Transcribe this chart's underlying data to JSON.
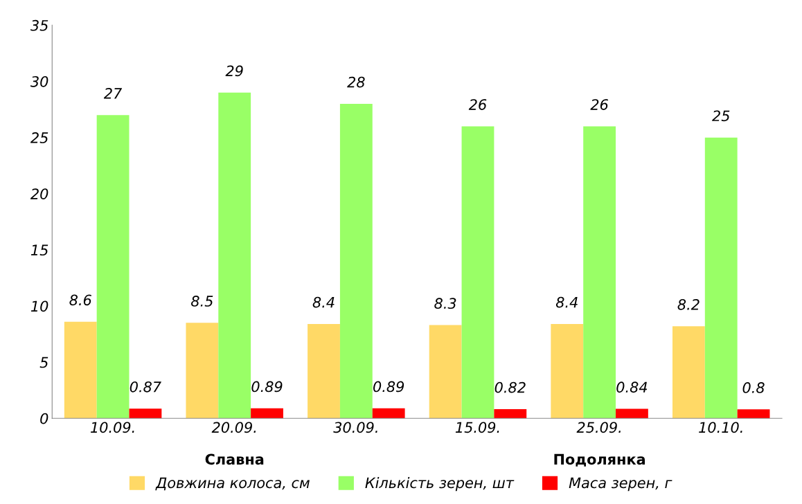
{
  "chart_data": {
    "type": "bar",
    "categories": [
      "10.09.",
      "20.09.",
      "30.09.",
      "15.09.",
      "25.09.",
      "10.10."
    ],
    "series": [
      {
        "name": "Довжина колоса, см",
        "color": "#ffd966",
        "values": [
          8.6,
          8.5,
          8.4,
          8.3,
          8.4,
          8.2
        ]
      },
      {
        "name": "Кількість зерен, шт",
        "color": "#99ff66",
        "values": [
          27,
          29,
          28,
          26,
          26,
          25
        ]
      },
      {
        "name": "Маса зерен, г",
        "color": "#ff0000",
        "values": [
          0.87,
          0.89,
          0.89,
          0.82,
          0.84,
          0.8
        ]
      }
    ],
    "annotations": [
      "Славна",
      "Подолянка"
    ],
    "ylim": [
      0,
      35
    ],
    "yticks": [
      0,
      5,
      10,
      15,
      20,
      25,
      30,
      35
    ],
    "data_labels": true,
    "grid": false,
    "legend": "bottom"
  }
}
